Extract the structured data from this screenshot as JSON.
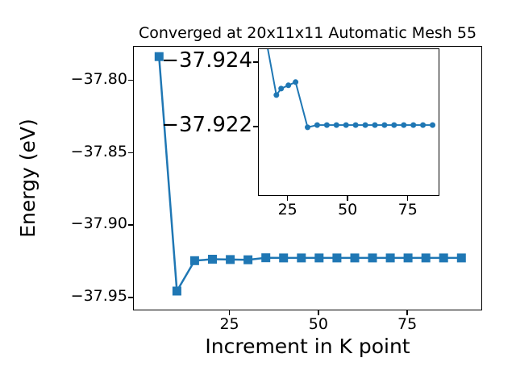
{
  "chart_data": {
    "type": "line",
    "title": "Converged at 20x11x11 Automatic Mesh 55",
    "xlabel": "Increment in K point",
    "ylabel": "Energy (eV)",
    "main_plot": {
      "marker": "square",
      "line_color": "#1f77b4",
      "x": [
        5,
        10,
        15,
        20,
        25,
        30,
        35,
        40,
        45,
        50,
        55,
        60,
        65,
        70,
        75,
        80,
        85,
        90
      ],
      "y": [
        -37.783,
        -37.945,
        -37.924,
        -37.923,
        -37.9232,
        -37.9234,
        -37.922,
        -37.9221,
        -37.9221,
        -37.9221,
        -37.9221,
        -37.9221,
        -37.9221,
        -37.9221,
        -37.9221,
        -37.9221,
        -37.9221,
        -37.9221
      ],
      "xticks": {
        "values": [
          25,
          50,
          75
        ],
        "labels": [
          "25",
          "50",
          "75"
        ]
      },
      "yticks": {
        "values": [
          -37.8,
          -37.85,
          -37.9,
          -37.95
        ],
        "labels": [
          "−37.80",
          "−37.85",
          "−37.90",
          "−37.95"
        ]
      },
      "xlim": [
        -2.1,
        95.6
      ],
      "ylim_top": -37.7762,
      "ylim_bottom": -37.9578,
      "grid": false,
      "legend": "none"
    },
    "inset_plot": {
      "marker": "circle",
      "line_color": "#1f77b4",
      "x": [
        15,
        20,
        22,
        25,
        28,
        33,
        37,
        41,
        45,
        49,
        53,
        57,
        61,
        65,
        69,
        73,
        77,
        81,
        85
      ],
      "y": [
        -37.925,
        -37.923,
        -37.9232,
        -37.9233,
        -37.9234,
        -37.922,
        -37.92207,
        -37.92207,
        -37.92207,
        -37.92207,
        -37.92207,
        -37.92207,
        -37.92207,
        -37.92207,
        -37.92207,
        -37.92207,
        -37.92207,
        -37.92207,
        -37.92207
      ],
      "xticks": {
        "values": [
          25,
          50,
          75
        ],
        "labels": [
          "25",
          "50",
          "75"
        ]
      },
      "yticks": {
        "values": [
          -37.924,
          -37.922
        ],
        "labels": [
          "−37.924",
          "−37.922"
        ]
      },
      "xlim": [
        12.7,
        87.5
      ],
      "ylim_top": -37.92442,
      "ylim_bottom": -37.9199,
      "grid": false,
      "legend": "none"
    }
  }
}
